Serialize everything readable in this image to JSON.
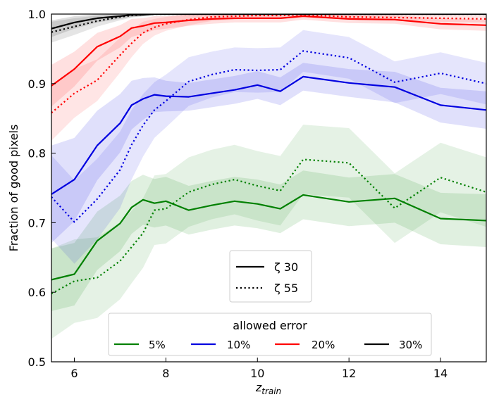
{
  "chart_data": {
    "type": "line",
    "xlabel": "z",
    "xlabel_sub": "train",
    "ylabel": "Fraction of good pixels",
    "xlim": [
      5.5,
      15.0
    ],
    "ylim": [
      0.5,
      1.0
    ],
    "xticks": [
      6,
      8,
      10,
      12,
      14
    ],
    "yticks": [
      0.5,
      0.6,
      0.7,
      0.8,
      0.9,
      1.0
    ],
    "x": [
      5.5,
      6.0,
      6.5,
      7.0,
      7.25,
      7.5,
      7.75,
      8.0,
      8.5,
      9.0,
      9.5,
      10.0,
      10.5,
      11.0,
      12.0,
      13.0,
      14.0,
      15.0
    ],
    "series": [
      {
        "error": "5%",
        "zeta": "30",
        "color": "#008000",
        "style": "solid",
        "values": [
          0.618,
          0.626,
          0.674,
          0.699,
          0.722,
          0.733,
          0.728,
          0.731,
          0.718,
          0.725,
          0.731,
          0.727,
          0.72,
          0.74,
          0.73,
          0.735,
          0.706,
          0.703
        ],
        "band": [
          0.045,
          0.045,
          0.042,
          0.04,
          0.038,
          0.036,
          0.035,
          0.035,
          0.035,
          0.035,
          0.035,
          0.035,
          0.035,
          0.035,
          0.035,
          0.035,
          0.037,
          0.038
        ]
      },
      {
        "error": "5%",
        "zeta": "55",
        "color": "#008000",
        "style": "dotted",
        "values": [
          0.598,
          0.616,
          0.621,
          0.645,
          0.665,
          0.685,
          0.718,
          0.72,
          0.744,
          0.755,
          0.762,
          0.753,
          0.746,
          0.791,
          0.786,
          0.721,
          0.765,
          0.744
        ],
        "band": [
          0.065,
          0.06,
          0.058,
          0.055,
          0.052,
          0.05,
          0.05,
          0.05,
          0.05,
          0.05,
          0.05,
          0.05,
          0.05,
          0.05,
          0.05,
          0.05,
          0.05,
          0.05
        ]
      },
      {
        "error": "10%",
        "zeta": "30",
        "color": "#0000e0",
        "style": "solid",
        "values": [
          0.741,
          0.762,
          0.811,
          0.843,
          0.869,
          0.878,
          0.884,
          0.882,
          0.881,
          0.886,
          0.891,
          0.898,
          0.889,
          0.91,
          0.901,
          0.895,
          0.869,
          0.862
        ],
        "band": [
          0.07,
          0.06,
          0.05,
          0.042,
          0.035,
          0.03,
          0.025,
          0.022,
          0.02,
          0.02,
          0.02,
          0.02,
          0.02,
          0.02,
          0.02,
          0.022,
          0.025,
          0.027
        ]
      },
      {
        "error": "10%",
        "zeta": "55",
        "color": "#0000e0",
        "style": "dotted",
        "values": [
          0.737,
          0.701,
          0.734,
          0.776,
          0.812,
          0.84,
          0.862,
          0.875,
          0.903,
          0.913,
          0.92,
          0.919,
          0.92,
          0.947,
          0.937,
          0.902,
          0.915,
          0.9
        ],
        "band": [
          0.06,
          0.06,
          0.058,
          0.055,
          0.05,
          0.045,
          0.04,
          0.038,
          0.035,
          0.033,
          0.032,
          0.032,
          0.032,
          0.03,
          0.03,
          0.03,
          0.03,
          0.03
        ]
      },
      {
        "error": "20%",
        "zeta": "30",
        "color": "#ff0000",
        "style": "solid",
        "values": [
          0.897,
          0.921,
          0.953,
          0.968,
          0.98,
          0.983,
          0.987,
          0.988,
          0.991,
          0.993,
          0.994,
          0.994,
          0.994,
          0.997,
          0.993,
          0.992,
          0.986,
          0.984
        ],
        "band": [
          0.03,
          0.025,
          0.02,
          0.016,
          0.013,
          0.011,
          0.01,
          0.009,
          0.008,
          0.007,
          0.006,
          0.006,
          0.006,
          0.005,
          0.006,
          0.006,
          0.008,
          0.008
        ]
      },
      {
        "error": "20%",
        "zeta": "55",
        "color": "#ff0000",
        "style": "dotted",
        "values": [
          0.858,
          0.886,
          0.905,
          0.941,
          0.958,
          0.973,
          0.981,
          0.986,
          0.992,
          0.996,
          0.997,
          0.998,
          0.998,
          0.999,
          0.996,
          0.995,
          0.994,
          0.993
        ],
        "band": [
          0.04,
          0.035,
          0.03,
          0.025,
          0.02,
          0.016,
          0.012,
          0.01,
          0.008,
          0.006,
          0.005,
          0.004,
          0.004,
          0.003,
          0.004,
          0.004,
          0.005,
          0.005
        ]
      },
      {
        "error": "30%",
        "zeta": "30",
        "color": "#000000",
        "style": "solid",
        "values": [
          0.979,
          0.988,
          0.994,
          0.997,
          0.999,
          0.999,
          1.0,
          1.0,
          1.0,
          1.0,
          1.0,
          1.0,
          1.0,
          1.0,
          1.0,
          1.0,
          1.0,
          1.0
        ],
        "band": [
          0.012,
          0.009,
          0.006,
          0.004,
          0.003,
          0.002,
          0.001,
          0.001,
          0.001,
          0.001,
          0.001,
          0.001,
          0.001,
          0.001,
          0.001,
          0.001,
          0.001,
          0.001
        ]
      },
      {
        "error": "30%",
        "zeta": "55",
        "color": "#000000",
        "style": "dotted",
        "values": [
          0.974,
          0.982,
          0.99,
          0.996,
          0.998,
          0.999,
          1.0,
          1.0,
          1.0,
          1.0,
          1.0,
          1.0,
          1.0,
          1.0,
          1.0,
          1.0,
          1.0,
          1.0
        ],
        "band": [
          0.015,
          0.012,
          0.008,
          0.005,
          0.003,
          0.002,
          0.001,
          0.001,
          0.001,
          0.001,
          0.001,
          0.001,
          0.001,
          0.001,
          0.001,
          0.001,
          0.001,
          0.001
        ]
      }
    ],
    "legend_style": {
      "placement": "bottom-center",
      "entries": [
        {
          "label": "ζ 30",
          "style": "solid"
        },
        {
          "label": "ζ 55",
          "style": "dotted"
        }
      ]
    },
    "legend_error": {
      "placement": "bottom",
      "title": "allowed error",
      "entries": [
        {
          "label": "5%",
          "color": "#008000"
        },
        {
          "label": "10%",
          "color": "#0000e0"
        },
        {
          "label": "20%",
          "color": "#ff0000"
        },
        {
          "label": "30%",
          "color": "#000000"
        }
      ]
    }
  }
}
